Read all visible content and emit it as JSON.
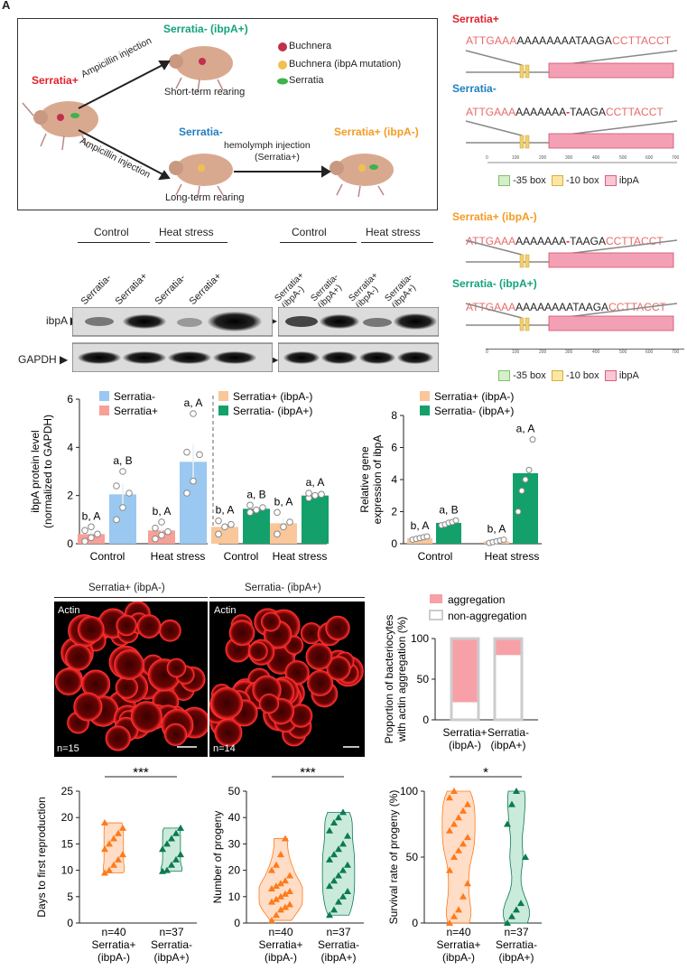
{
  "figure_letter": "A",
  "colors": {
    "red": "#e0222e",
    "blue": "#1f7fc0",
    "orange": "#f59b23",
    "green": "#14a37a",
    "salmon_bar": "#f7a097",
    "blue_bar": "#9ac8f0",
    "orange_bar": "#f9c79a",
    "green_bar": "#13a06a",
    "violin_orange": "#ff7a1a",
    "violin_green": "#0c7a53",
    "pink_box": "#f2a5b5",
    "seq_red": "#e86a6a"
  },
  "schematic": {
    "serratia_plus": "Serratia+",
    "serratia_minus_ibpa_plus": "Serratia- (ibpA+)",
    "serratia_minus": "Serratia-",
    "serratia_plus_ibpa_minus": "Serratia+ (ibpA-)",
    "ampicillin_1": "Ampicillin injection",
    "ampicillin_2": "Ampicillin injection",
    "short_term": "Short-term rearing",
    "long_term": "Long-term rearing",
    "hemolymph_1": "hemolymph injection",
    "hemolymph_2": "(Serratia+)",
    "legend": [
      "Buchnera",
      "Buchnera (ibpA mutation)",
      "Serratia"
    ]
  },
  "sequences": {
    "block1_title": "Serratia+",
    "block1_seq": {
      "a": "ATTGAAA",
      "b": "AAAAAAAATAAGA",
      "c": "CCTTACCT"
    },
    "block2_title": "Serratia-",
    "block2_seq": {
      "a": "ATTGAAA",
      "b": "AAAAAAA",
      "dash": "-",
      "b2": "TAAGA",
      "c": "CCTTACCT"
    },
    "block3_title": "Serratia+ (ibpA-)",
    "block3_seq": {
      "a": "ATTGAAA",
      "b": "AAAAAAA",
      "dash": "-",
      "b2": "TAAGA",
      "c": "CCTTACCT"
    },
    "block4_title": "Serratia- (ibpA+)",
    "block4_seq": {
      "a": "ATTGAAA",
      "b": "AAAAAAAATAAGA",
      "c": "CCTTACCT"
    },
    "axis_ticks": [
      "0",
      "100",
      "200",
      "300",
      "400",
      "500",
      "600",
      "700"
    ],
    "legend": [
      "-35 box",
      "-10 box",
      "ibpA"
    ]
  },
  "western": {
    "left": {
      "group1": "Control",
      "group2": "Heat stress",
      "lanes": [
        "Serratia-",
        "Serratia+",
        "Serratia-",
        "Serratia+"
      ]
    },
    "right": {
      "group1": "Control",
      "group2": "Heat stress",
      "lanes": [
        "Serratia+ (ibpA-)",
        "Serratia- (ibpA+)",
        "Serratia+ (ibpA-)",
        "Serratia- (ibpA+)"
      ]
    },
    "band1": "ibpA",
    "band2": "GAPDH"
  },
  "imaging": {
    "left_title": "Serratia+ (ibpA-)",
    "right_title": "Serratia- (ibpA+)",
    "stain": "Actin",
    "left_n": "n=15",
    "right_n": "n=14"
  },
  "chart_data": [
    {
      "type": "bar",
      "ylabel": "ibpA protein level\n(normalized to GAPDH)",
      "ylim": [
        0,
        6
      ],
      "yticks": [
        "0",
        "2",
        "4",
        "6"
      ],
      "left_panel": {
        "categories": [
          "Control",
          "Heat stress"
        ],
        "series": [
          {
            "name": "Serratia+",
            "values": [
              0.4,
              0.55
            ],
            "labels": [
              "b, A",
              "b, A"
            ],
            "points": [
              [
                0.1,
                0.25,
                0.4,
                0.55,
                0.7
              ],
              [
                0.2,
                0.35,
                0.5,
                0.65,
                0.9
              ]
            ]
          },
          {
            "name": "Serratia-",
            "values": [
              2.05,
              3.4
            ],
            "labels": [
              "a, B",
              "a, A"
            ],
            "points": [
              [
                1.0,
                1.5,
                2.1,
                2.4,
                3.0
              ],
              [
                2.1,
                2.6,
                3.7,
                3.8,
                5.4
              ]
            ]
          }
        ],
        "legend": [
          "Serratia-",
          "Serratia+"
        ]
      },
      "right_panel": {
        "categories": [
          "Control",
          "Heat stress"
        ],
        "series": [
          {
            "name": "Serratia+ (ibpA-)",
            "values": [
              0.7,
              0.85
            ],
            "labels": [
              "b, A",
              "b, A"
            ],
            "points": [
              [
                0.4,
                0.7,
                0.8,
                0.95
              ],
              [
                0.4,
                0.7,
                0.9,
                1.3
              ]
            ]
          },
          {
            "name": "Serratia- (ibpA+)",
            "values": [
              1.45,
              2.0
            ],
            "labels": [
              "a, B",
              "a, A"
            ],
            "points": [
              [
                1.3,
                1.4,
                1.5,
                1.6
              ],
              [
                1.9,
                2.0,
                2.05,
                2.1
              ]
            ]
          }
        ],
        "legend": [
          "Serratia+ (ibpA-)",
          "Serratia- (ibpA+)"
        ]
      }
    },
    {
      "type": "bar",
      "ylabel": "Relative gene\nexpression of ibpA",
      "ylim": [
        0,
        8
      ],
      "yticks": [
        "0",
        "2",
        "4",
        "6",
        "8"
      ],
      "categories": [
        "Control",
        "Heat stress"
      ],
      "series": [
        {
          "name": "Serratia+ (ibpA-)",
          "values": [
            0.35,
            0.15
          ],
          "labels": [
            "b, A",
            "b, A"
          ],
          "points": [
            [
              0.25,
              0.3,
              0.35,
              0.4,
              0.45
            ],
            [
              0.05,
              0.1,
              0.15,
              0.2,
              0.25
            ]
          ]
        },
        {
          "name": "Serratia- (ibpA+)",
          "values": [
            1.3,
            4.4
          ],
          "labels": [
            "a, B",
            "a, A"
          ],
          "points": [
            [
              1.15,
              1.2,
              1.3,
              1.35,
              1.45
            ],
            [
              2.0,
              3.3,
              4.0,
              4.6,
              6.5
            ]
          ]
        }
      ]
    },
    {
      "type": "bar",
      "ylabel": "Proportion of bacteriocytes\nwith actin aggregation (%)",
      "ylim": [
        0,
        100
      ],
      "yticks": [
        "0",
        "50",
        "100"
      ],
      "categories": [
        "Serratia+\n(ibpA-)",
        "Serratia-\n(ibpA+)"
      ],
      "series": [
        {
          "name": "aggregation",
          "values": [
            80,
            22
          ]
        },
        {
          "name": "non-aggregation",
          "values": [
            20,
            78
          ]
        }
      ]
    },
    {
      "type": "violin",
      "ylabel": "Days to first reproduction",
      "ylim": [
        0,
        25
      ],
      "yticks": [
        "0",
        "5",
        "10",
        "15",
        "20",
        "25"
      ],
      "categories": [
        "Serratia+\n(ibpA-)",
        "Serratia-\n(ibpA+)"
      ],
      "n": [
        "n=40",
        "n=37"
      ],
      "significance": "***",
      "series_values": [
        [
          9.5,
          10,
          11,
          12,
          13,
          14,
          15,
          16,
          17,
          18,
          19
        ],
        [
          9.8,
          10,
          11,
          12,
          13,
          14,
          15,
          16,
          17,
          18
        ]
      ]
    },
    {
      "type": "violin",
      "ylabel": "Number of progeny",
      "ylim": [
        0,
        50
      ],
      "yticks": [
        "0",
        "10",
        "20",
        "30",
        "40",
        "50"
      ],
      "categories": [
        "Serratia+\n(ibpA-)",
        "Serratia-\n(ibpA+)"
      ],
      "n": [
        "n=40",
        "n=37"
      ],
      "significance": "***",
      "series_values": [
        [
          1,
          3,
          5,
          6,
          7,
          8,
          9,
          10,
          11,
          12,
          13,
          14,
          15,
          16,
          18,
          20,
          22,
          26,
          32
        ],
        [
          3,
          5,
          8,
          10,
          12,
          14,
          16,
          18,
          20,
          22,
          24,
          26,
          28,
          30,
          33,
          35,
          38,
          40,
          42
        ]
      ]
    },
    {
      "type": "violin",
      "ylabel": "Survival rate of progeny (%)",
      "ylim": [
        0,
        100
      ],
      "yticks": [
        "0",
        "50",
        "100"
      ],
      "categories": [
        "Serratia+\n(ibpA-)",
        "Serratia-\n(ibpA+)"
      ],
      "n": [
        "n=40",
        "n=37"
      ],
      "significance": "*",
      "series_values": [
        [
          0,
          5,
          10,
          20,
          30,
          40,
          50,
          55,
          60,
          65,
          70,
          75,
          80,
          85,
          90,
          95,
          100
        ],
        [
          0,
          5,
          10,
          15,
          50,
          75,
          90,
          100
        ]
      ]
    }
  ]
}
